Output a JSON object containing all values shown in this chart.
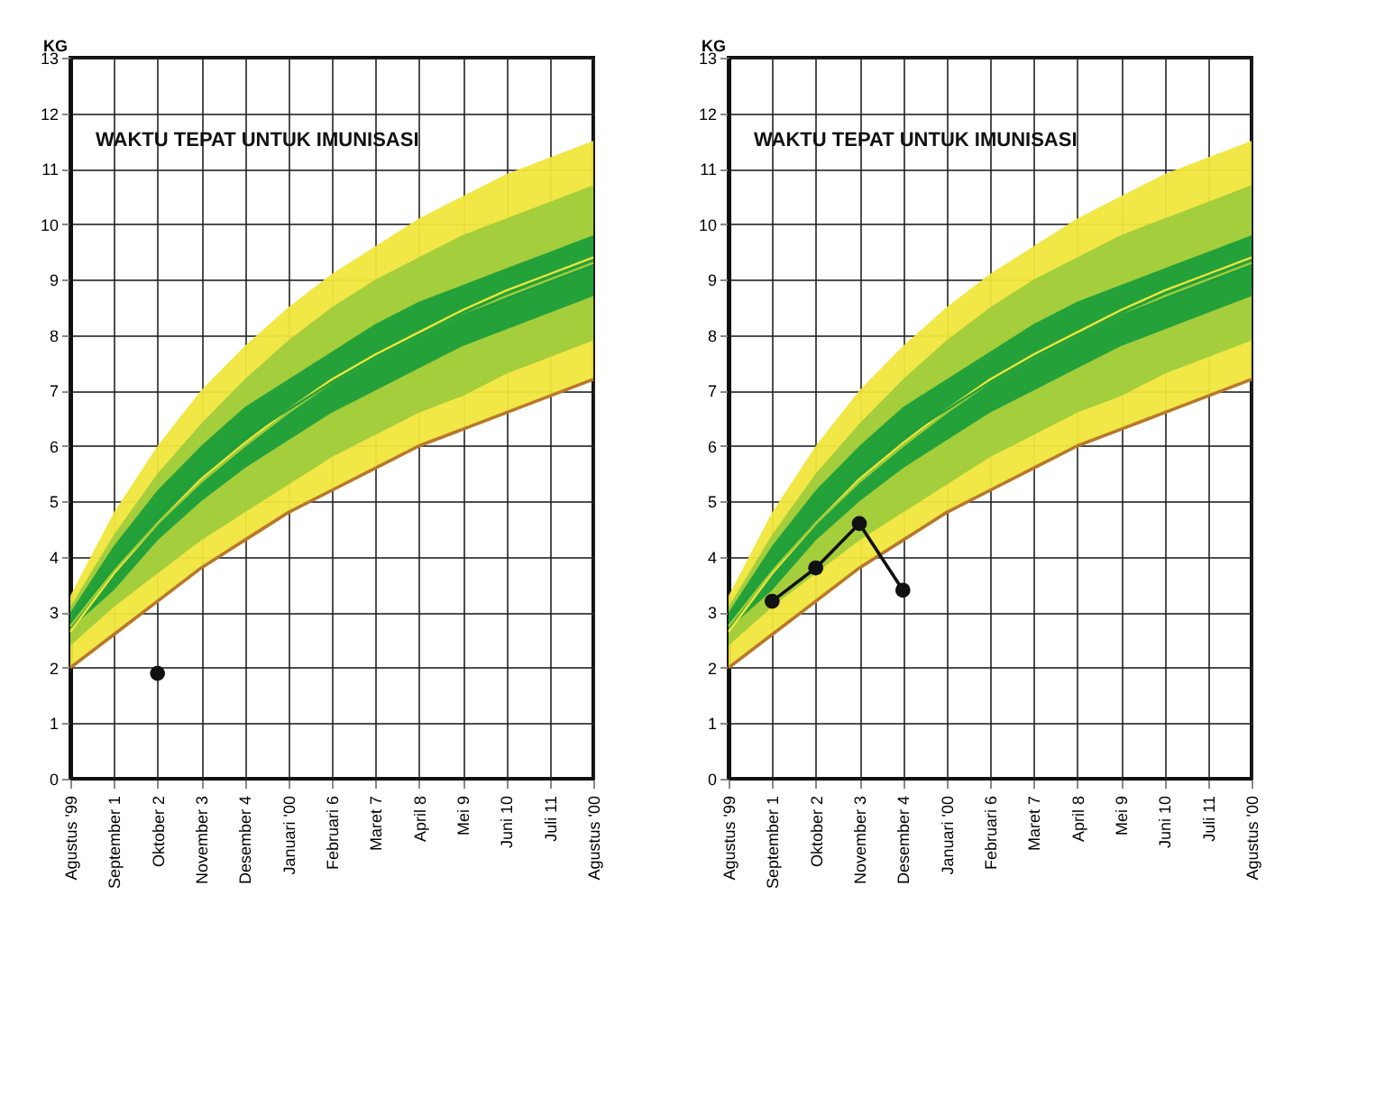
{
  "chart_data": [
    {
      "type": "line",
      "ylabel": "KG",
      "annotations": [
        "WAKTU TEPAT UNTUK IMUNISASI"
      ],
      "categories": [
        "Agustus '99",
        "September 1",
        "Oktober 2",
        "November 3",
        "Desember 4",
        "Januari '00",
        "Februari 6",
        "Maret 7",
        "April 8",
        "Mei 9",
        "Juni 10",
        "Juli 11",
        "Agustus '00"
      ],
      "ylim": [
        0,
        13
      ],
      "yticks": [
        0,
        1,
        2,
        3,
        4,
        5,
        6,
        7,
        8,
        9,
        10,
        11,
        12,
        13
      ],
      "grid": true,
      "marker": "circle",
      "series": [
        {
          "color": "#f0e63c",
          "marker": "none",
          "values": [
            2.65,
            3.7,
            4.6,
            5.4,
            6.05,
            6.65,
            7.2,
            7.65,
            8.05,
            8.45,
            8.8,
            9.1,
            9.4
          ],
          "lower": [
            2.0,
            2.6,
            3.2,
            3.8,
            4.3,
            4.8,
            5.2,
            5.6,
            6.0,
            6.3,
            6.6,
            6.9,
            7.2
          ],
          "upper": [
            3.3,
            4.8,
            6.0,
            7.0,
            7.8,
            8.5,
            9.1,
            9.6,
            10.1,
            10.5,
            10.9,
            11.2,
            11.5
          ]
        },
        {
          "color": "#9fcc3c",
          "marker": "none",
          "values": [
            2.75,
            3.75,
            4.6,
            5.35,
            6.0,
            6.6,
            7.15,
            7.6,
            8.0,
            8.35,
            8.7,
            9.0,
            9.3
          ],
          "lower": [
            2.4,
            3.1,
            3.7,
            4.3,
            4.8,
            5.3,
            5.8,
            6.2,
            6.6,
            6.9,
            7.3,
            7.6,
            7.9
          ],
          "upper": [
            3.1,
            4.4,
            5.5,
            6.4,
            7.2,
            7.9,
            8.5,
            9.0,
            9.4,
            9.8,
            10.1,
            10.4,
            10.7
          ]
        },
        {
          "color": "#1f9e3a",
          "marker": "none",
          "values": [
            2.85,
            3.8,
            4.75,
            5.5,
            6.15,
            6.65,
            7.15,
            7.6,
            8.0,
            8.35,
            8.65,
            8.95,
            9.25
          ],
          "lower": [
            2.7,
            3.4,
            4.3,
            5.0,
            5.6,
            6.1,
            6.6,
            7.0,
            7.4,
            7.8,
            8.1,
            8.4,
            8.7
          ],
          "upper": [
            3.0,
            4.2,
            5.2,
            6.0,
            6.7,
            7.2,
            7.7,
            8.2,
            8.6,
            8.9,
            9.2,
            9.5,
            9.8
          ]
        },
        {
          "color": "#b8782a",
          "marker": "none",
          "values": [
            2.0,
            2.6,
            3.2,
            3.8,
            4.3,
            4.8,
            5.2,
            5.6,
            6.0,
            6.3,
            6.6,
            6.9,
            7.2
          ]
        },
        {
          "type": "scatter",
          "color": "#111111",
          "values": [
            null,
            null,
            1.9,
            null,
            null,
            null,
            null,
            null,
            null,
            null,
            null,
            null,
            null
          ]
        }
      ]
    },
    {
      "type": "line",
      "ylabel": "KG",
      "annotations": [
        "WAKTU TEPAT UNTUK IMUNISASI"
      ],
      "categories": [
        "Agustus '99",
        "September 1",
        "Oktober 2",
        "November 3",
        "Desember 4",
        "Januari '00",
        "Februari 6",
        "Maret 7",
        "April 8",
        "Mei 9",
        "Juni 10",
        "Juli 11",
        "Agustus '00"
      ],
      "ylim": [
        0,
        13
      ],
      "yticks": [
        0,
        1,
        2,
        3,
        4,
        5,
        6,
        7,
        8,
        9,
        10,
        11,
        12,
        13
      ],
      "grid": true,
      "marker": "circle",
      "series": [
        {
          "color": "#f0e63c",
          "marker": "none",
          "values": [
            2.65,
            3.7,
            4.6,
            5.4,
            6.05,
            6.65,
            7.2,
            7.65,
            8.05,
            8.45,
            8.8,
            9.1,
            9.4
          ],
          "lower": [
            2.0,
            2.6,
            3.2,
            3.8,
            4.3,
            4.8,
            5.2,
            5.6,
            6.0,
            6.3,
            6.6,
            6.9,
            7.2
          ],
          "upper": [
            3.3,
            4.8,
            6.0,
            7.0,
            7.8,
            8.5,
            9.1,
            9.6,
            10.1,
            10.5,
            10.9,
            11.2,
            11.5
          ]
        },
        {
          "color": "#9fcc3c",
          "marker": "none",
          "values": [
            2.75,
            3.75,
            4.6,
            5.35,
            6.0,
            6.6,
            7.15,
            7.6,
            8.0,
            8.35,
            8.7,
            9.0,
            9.3
          ],
          "lower": [
            2.4,
            3.1,
            3.7,
            4.3,
            4.8,
            5.3,
            5.8,
            6.2,
            6.6,
            6.9,
            7.3,
            7.6,
            7.9
          ],
          "upper": [
            3.1,
            4.4,
            5.5,
            6.4,
            7.2,
            7.9,
            8.5,
            9.0,
            9.4,
            9.8,
            10.1,
            10.4,
            10.7
          ]
        },
        {
          "color": "#1f9e3a",
          "marker": "none",
          "values": [
            2.85,
            3.8,
            4.75,
            5.5,
            6.15,
            6.65,
            7.15,
            7.6,
            8.0,
            8.35,
            8.65,
            8.95,
            9.25
          ],
          "lower": [
            2.7,
            3.4,
            4.3,
            5.0,
            5.6,
            6.1,
            6.6,
            7.0,
            7.4,
            7.8,
            8.1,
            8.4,
            8.7
          ],
          "upper": [
            3.0,
            4.2,
            5.2,
            6.0,
            6.7,
            7.2,
            7.7,
            8.2,
            8.6,
            8.9,
            9.2,
            9.5,
            9.8
          ]
        },
        {
          "color": "#b8782a",
          "marker": "none",
          "values": [
            2.0,
            2.6,
            3.2,
            3.8,
            4.3,
            4.8,
            5.2,
            5.6,
            6.0,
            6.3,
            6.6,
            6.9,
            7.2
          ]
        },
        {
          "color": "#111111",
          "values": [
            null,
            3.2,
            3.8,
            4.6,
            3.4,
            null,
            null,
            null,
            null,
            null,
            null,
            null,
            null
          ]
        }
      ]
    }
  ]
}
